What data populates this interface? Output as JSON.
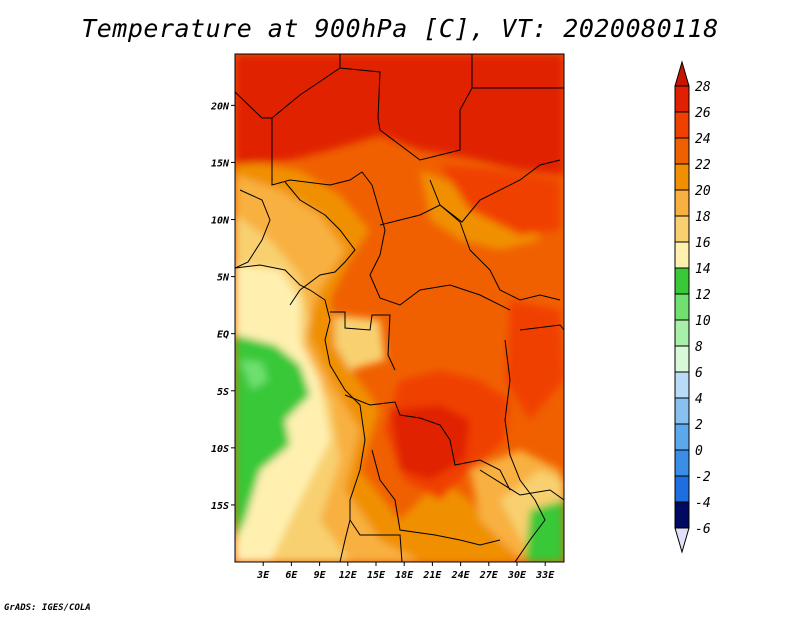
{
  "title": "Temperature at 900hPa [C], VT: 2020080118",
  "credit": "GrADS: IGES/COLA",
  "map": {
    "lon_range": [
      0,
      35
    ],
    "lat_range": [
      -20,
      24.5
    ],
    "x_ticks": [
      {
        "lon": 3,
        "label": "3E"
      },
      {
        "lon": 6,
        "label": "6E"
      },
      {
        "lon": 9,
        "label": "9E"
      },
      {
        "lon": 12,
        "label": "12E"
      },
      {
        "lon": 15,
        "label": "15E"
      },
      {
        "lon": 18,
        "label": "18E"
      },
      {
        "lon": 21,
        "label": "21E"
      },
      {
        "lon": 24,
        "label": "24E"
      },
      {
        "lon": 27,
        "label": "27E"
      },
      {
        "lon": 30,
        "label": "30E"
      },
      {
        "lon": 33,
        "label": "33E"
      }
    ],
    "y_ticks": [
      {
        "lat": 20,
        "label": "20N"
      },
      {
        "lat": 15,
        "label": "15N"
      },
      {
        "lat": 10,
        "label": "10N"
      },
      {
        "lat": 5,
        "label": "5N"
      },
      {
        "lat": 0,
        "label": "EQ"
      },
      {
        "lat": -5,
        "label": "5S"
      },
      {
        "lat": -10,
        "label": "10S"
      },
      {
        "lat": -15,
        "label": "15S"
      }
    ]
  },
  "colorbar": {
    "levels": [
      {
        "label": "28",
        "color": "#e02000"
      },
      {
        "label": "26",
        "color": "#f04000"
      },
      {
        "label": "24",
        "color": "#f06000"
      },
      {
        "label": "22",
        "color": "#f09000"
      },
      {
        "label": "20",
        "color": "#f8b040"
      },
      {
        "label": "18",
        "color": "#f8d070"
      },
      {
        "label": "16",
        "color": "#fff0b0"
      },
      {
        "label": "14",
        "color": "#38c838"
      },
      {
        "label": "12",
        "color": "#70e070"
      },
      {
        "label": "10",
        "color": "#a8f0a8"
      },
      {
        "label": "8",
        "color": "#d8f8d8"
      },
      {
        "label": "6",
        "color": "#b8dcf8"
      },
      {
        "label": "4",
        "color": "#88c0f0"
      },
      {
        "label": "2",
        "color": "#5ca8ec"
      },
      {
        "label": "0",
        "color": "#3a8ee8"
      },
      {
        "label": "-2",
        "color": "#1e6ee0"
      },
      {
        "label": "-4",
        "color": "#0a48c0"
      },
      {
        "label": "-6",
        "color": "#042890"
      }
    ],
    "top_arrow_color": "#c81400",
    "bottom_arrow_color": "#e0e0f8",
    "bottom_color": "#000a60"
  }
}
